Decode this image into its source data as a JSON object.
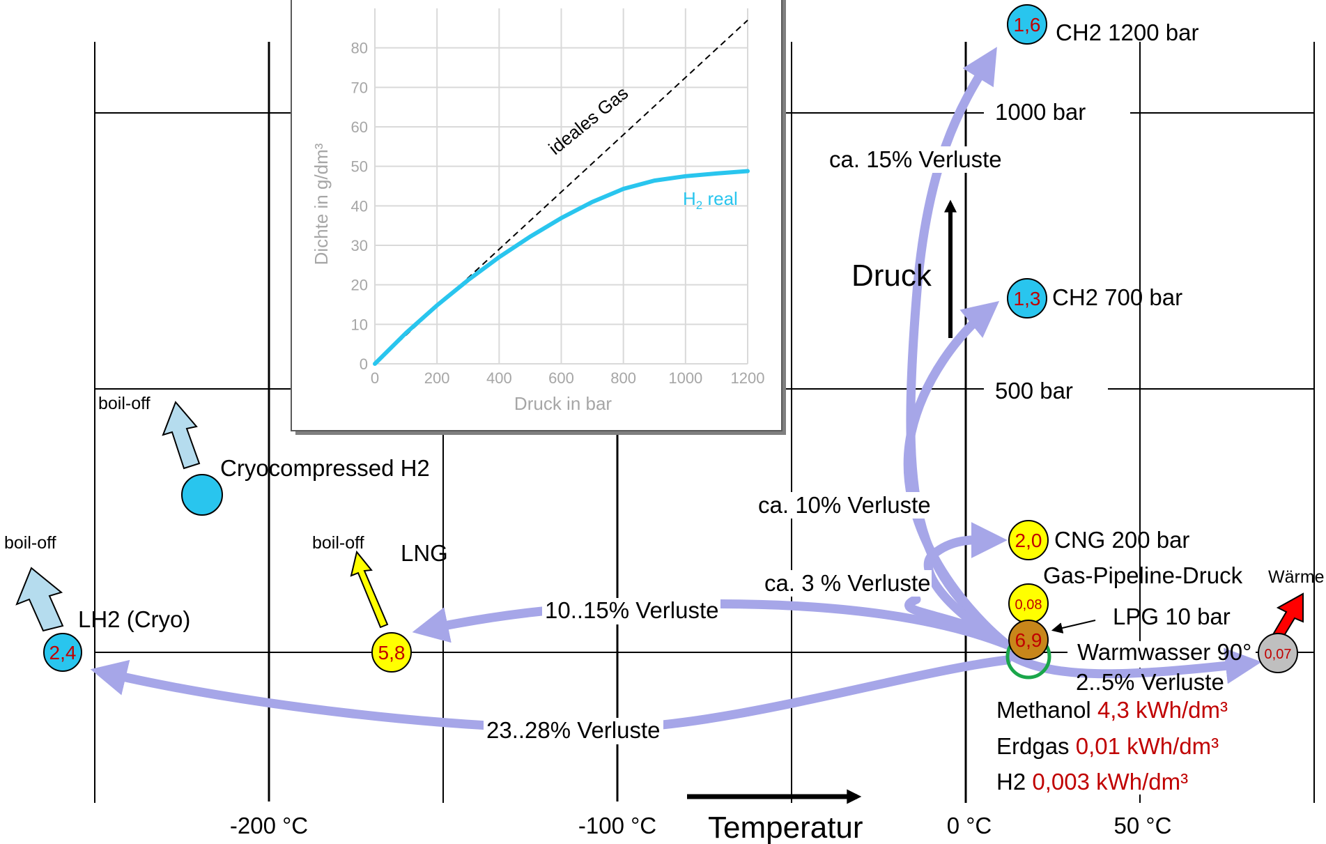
{
  "axes": {
    "temperature_ticks": [
      "-200 °C",
      "-100 °C",
      "0 °C",
      "50 °C"
    ],
    "temperature_label": "Temperatur",
    "pressure_label": "Druck",
    "pressure_ticks": [
      "1000 bar",
      "500 bar"
    ]
  },
  "nodes": {
    "ch2_1200": {
      "value": "1,6",
      "label": "CH2 1200 bar"
    },
    "ch2_700": {
      "value": "1,3",
      "label": "CH2 700 bar"
    },
    "cng": {
      "value": "2,0",
      "label": "CNG 200 bar"
    },
    "pipeline": {
      "value": "0,08",
      "label": "Gas-Pipeline-Druck"
    },
    "lpg": {
      "value": "6,9",
      "label": "LPG 10 bar"
    },
    "warmwasser": {
      "value": "0,07",
      "label": "Warmwasser 90°"
    },
    "lng": {
      "value": "5,8",
      "label": "LNG"
    },
    "lh2": {
      "value": "2,4",
      "label": "LH2 (Cryo)"
    },
    "cryo": {
      "label": "Cryocompressed H2"
    }
  },
  "side_arrows": {
    "boiloff_lh2": "boil-off",
    "boiloff_cryo": "boil-off",
    "boiloff_lng": "boil-off",
    "waerme": "Wärme"
  },
  "losses": {
    "ch2_1200": "ca. 15% Verluste",
    "ch2_700": "ca. 10% Verluste",
    "cng": "ca. 3 % Verluste",
    "lng": "10..15% Verluste",
    "lh2": "23..28% Verluste",
    "warm": "2..5% Verluste"
  },
  "reference": [
    {
      "name": "Methanol",
      "value": "4,3 kWh/dm³"
    },
    {
      "name": "Erdgas",
      "value": "0,01 kWh/dm³"
    },
    {
      "name": "H2",
      "value": "0,003 kWh/dm³"
    }
  ],
  "colors": {
    "arrow": "#a6a6e8",
    "cyan_node": "#29c5ee",
    "yellow_node": "#ffff00",
    "brown_node": "#c8861a",
    "grey_node": "#bfbfbf",
    "value_red": "#c00000",
    "h2_curve": "#29c5ee",
    "boiloff_blue": "#b5dcee",
    "heat_red": "#ff0000",
    "green_ring": "#1aa64a"
  },
  "chart_data": {
    "type": "line",
    "xlabel": "Druck in bar",
    "ylabel": "Dichte in g/dm³",
    "xlim": [
      0,
      1200
    ],
    "ylim": [
      0,
      90
    ],
    "x_ticks": [
      0,
      200,
      400,
      600,
      800,
      1000,
      1200
    ],
    "y_ticks": [
      0,
      10,
      20,
      30,
      40,
      50,
      60,
      70,
      80
    ],
    "grid": true,
    "series": [
      {
        "name": "ideales Gas",
        "style": "dashed",
        "x": [
          0,
          1200
        ],
        "y": [
          0,
          87
        ]
      },
      {
        "name": "H2 real",
        "style": "solid",
        "x": [
          0,
          100,
          200,
          300,
          400,
          500,
          600,
          700,
          800,
          900,
          1000,
          1100,
          1200
        ],
        "y": [
          0,
          7.8,
          14.8,
          21.2,
          27.0,
          32.2,
          36.9,
          41.0,
          44.3,
          46.4,
          47.5,
          48.2,
          48.8
        ]
      }
    ]
  }
}
